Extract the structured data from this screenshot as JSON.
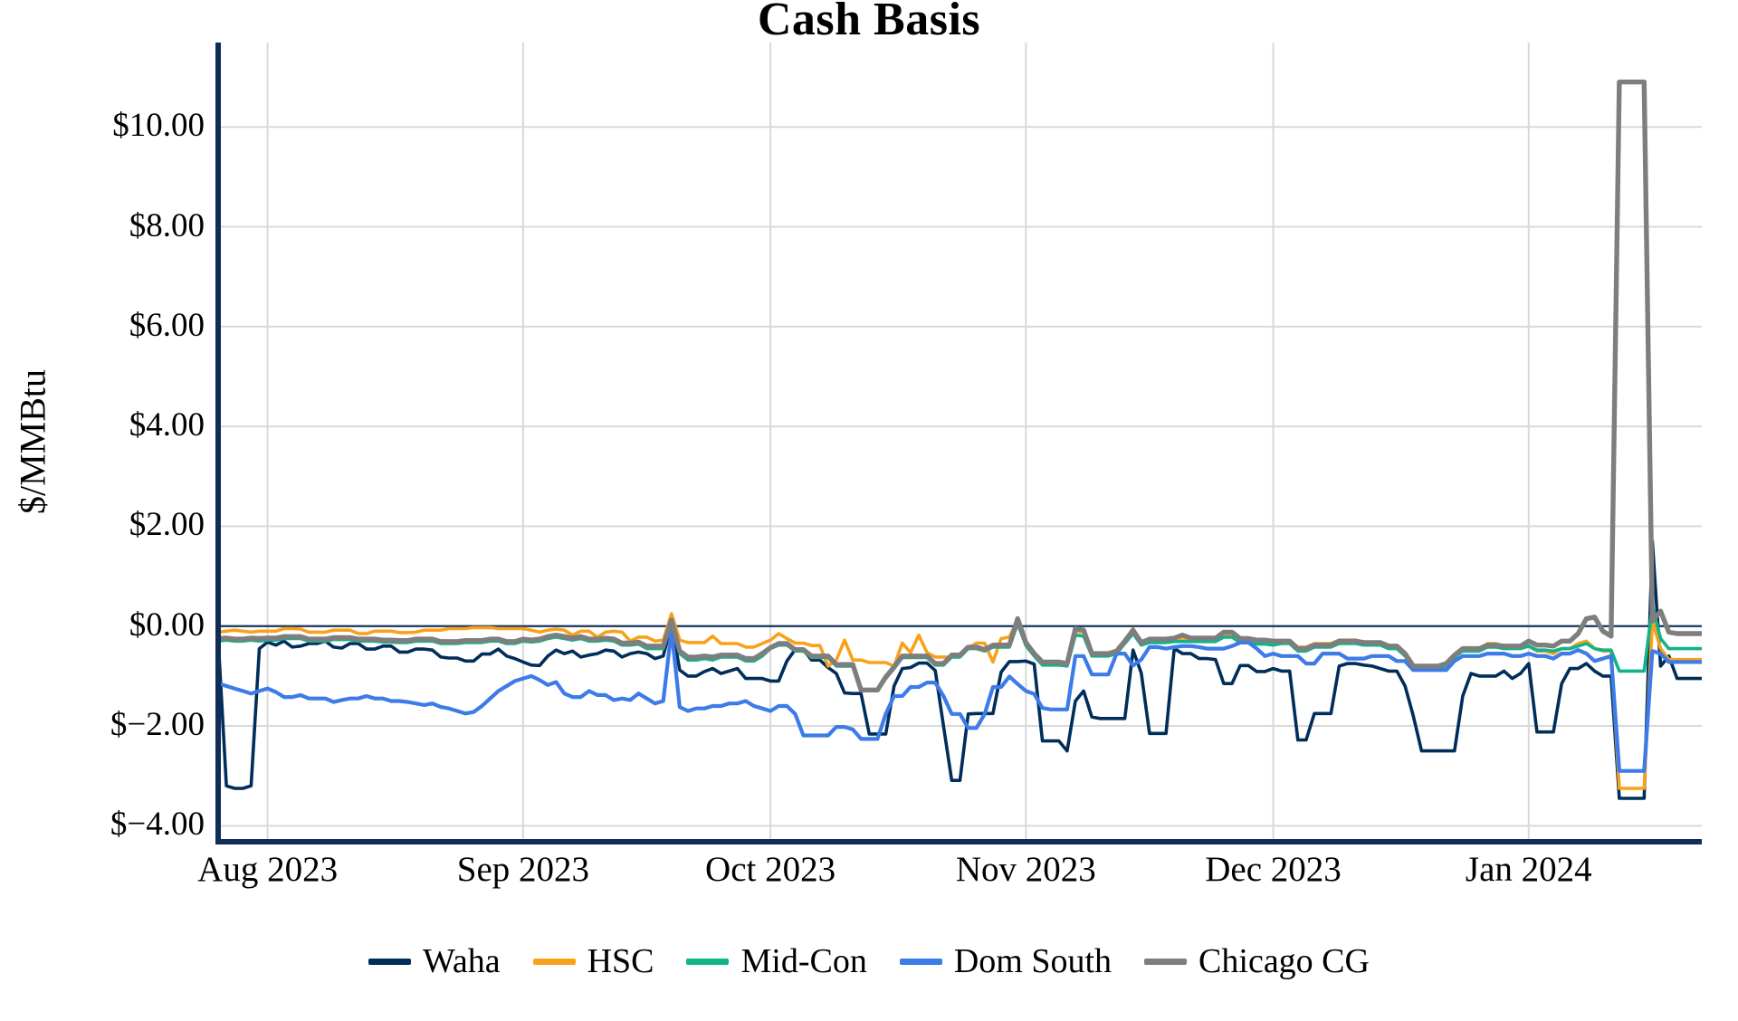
{
  "chart_data": {
    "type": "line",
    "title": "Cash Basis",
    "ylabel": "$/MMBtu",
    "ylim": [
      -4.32,
      11.69
    ],
    "grid": true,
    "grid_color": "#D9D9D9",
    "axis_color": "#0F2D56",
    "zero_line": {
      "value": 0,
      "color": "#16375E",
      "width": 2.2
    },
    "legend_position": "bottom",
    "yticks": [
      {
        "value": 10,
        "label": "$10.00"
      },
      {
        "value": 8,
        "label": "$8.00"
      },
      {
        "value": 6,
        "label": "$6.00"
      },
      {
        "value": 4,
        "label": "$4.00"
      },
      {
        "value": 2,
        "label": "$2.00"
      },
      {
        "value": 0,
        "label": "$0.00"
      },
      {
        "value": -2,
        "label": "$−2.00"
      },
      {
        "value": -4,
        "label": "$−4.00"
      }
    ],
    "x_axis_note": "daily points, late Jul 2023 through late Jan 2024",
    "n_points": 181,
    "xticks": [
      {
        "index": 6,
        "label": "Aug 2023"
      },
      {
        "index": 37,
        "label": "Sep 2023"
      },
      {
        "index": 67,
        "label": "Oct 2023"
      },
      {
        "index": 98,
        "label": "Nov 2023"
      },
      {
        "index": 128,
        "label": "Dec 2023"
      },
      {
        "index": 159,
        "label": "Jan 2024"
      }
    ],
    "series": [
      {
        "name": "Waha",
        "color": "#002D5A",
        "width": 3.6,
        "values": [
          -0.25,
          -3.2,
          -3.25,
          -3.25,
          -3.2,
          -0.45,
          -0.32,
          -0.38,
          -0.3,
          -0.42,
          -0.4,
          -0.35,
          -0.35,
          -0.3,
          -0.42,
          -0.44,
          -0.35,
          -0.35,
          -0.46,
          -0.46,
          -0.4,
          -0.4,
          -0.52,
          -0.52,
          -0.46,
          -0.46,
          -0.48,
          -0.62,
          -0.64,
          -0.64,
          -0.7,
          -0.7,
          -0.56,
          -0.56,
          -0.46,
          -0.6,
          -0.65,
          -0.72,
          -0.78,
          -0.79,
          -0.6,
          -0.48,
          -0.55,
          -0.5,
          -0.62,
          -0.58,
          -0.55,
          -0.48,
          -0.5,
          -0.62,
          -0.55,
          -0.52,
          -0.55,
          -0.65,
          -0.6,
          0.05,
          -0.88,
          -1.0,
          -1.0,
          -0.91,
          -0.85,
          -0.95,
          -0.9,
          -0.85,
          -1.05,
          -1.05,
          -1.05,
          -1.1,
          -1.1,
          -0.7,
          -0.47,
          -0.47,
          -0.68,
          -0.68,
          -0.83,
          -0.95,
          -1.34,
          -1.35,
          -1.35,
          -2.16,
          -2.16,
          -2.16,
          -1.2,
          -0.85,
          -0.83,
          -0.74,
          -0.74,
          -0.89,
          -2.0,
          -3.09,
          -3.09,
          -1.76,
          -1.75,
          -1.75,
          -1.75,
          -0.92,
          -0.71,
          -0.71,
          -0.7,
          -0.76,
          -2.3,
          -2.3,
          -2.3,
          -2.5,
          -1.5,
          -1.3,
          -1.82,
          -1.85,
          -1.85,
          -1.85,
          -1.85,
          -0.48,
          -0.94,
          -2.15,
          -2.15,
          -2.15,
          -0.45,
          -0.55,
          -0.55,
          -0.65,
          -0.65,
          -0.67,
          -1.15,
          -1.15,
          -0.79,
          -0.79,
          -0.91,
          -0.91,
          -0.85,
          -0.9,
          -0.9,
          -2.28,
          -2.28,
          -1.75,
          -1.75,
          -1.75,
          -0.8,
          -0.75,
          -0.75,
          -0.78,
          -0.8,
          -0.85,
          -0.9,
          -0.9,
          -1.2,
          -1.8,
          -2.5,
          -2.5,
          -2.5,
          -2.5,
          -2.5,
          -1.4,
          -0.95,
          -1.0,
          -1.0,
          -1.0,
          -0.9,
          -1.05,
          -0.95,
          -0.75,
          -2.12,
          -2.12,
          -2.12,
          -1.15,
          -0.85,
          -0.85,
          -0.75,
          -0.9,
          -1.0,
          -1.0,
          -3.45,
          -3.45,
          -3.45,
          -3.45,
          1.7,
          -0.8,
          -0.6,
          -1.05,
          -1.05,
          -1.05,
          -1.05
        ]
      },
      {
        "name": "HSC",
        "color": "#F9A11B",
        "width": 3.6,
        "values": [
          -0.12,
          -0.1,
          -0.08,
          -0.1,
          -0.12,
          -0.1,
          -0.1,
          -0.1,
          -0.05,
          -0.05,
          -0.06,
          -0.12,
          -0.12,
          -0.12,
          -0.08,
          -0.08,
          -0.08,
          -0.15,
          -0.15,
          -0.1,
          -0.1,
          -0.1,
          -0.13,
          -0.13,
          -0.12,
          -0.08,
          -0.08,
          -0.08,
          -0.05,
          -0.05,
          -0.05,
          -0.03,
          -0.03,
          -0.03,
          -0.05,
          -0.05,
          -0.05,
          -0.05,
          -0.08,
          -0.12,
          -0.08,
          -0.06,
          -0.08,
          -0.18,
          -0.1,
          -0.1,
          -0.22,
          -0.12,
          -0.1,
          -0.12,
          -0.3,
          -0.22,
          -0.22,
          -0.3,
          -0.28,
          0.25,
          -0.28,
          -0.33,
          -0.33,
          -0.33,
          -0.2,
          -0.35,
          -0.35,
          -0.35,
          -0.42,
          -0.42,
          -0.35,
          -0.28,
          -0.15,
          -0.25,
          -0.34,
          -0.34,
          -0.39,
          -0.39,
          -0.8,
          -0.68,
          -0.28,
          -0.68,
          -0.68,
          -0.73,
          -0.73,
          -0.73,
          -0.8,
          -0.34,
          -0.53,
          -0.18,
          -0.53,
          -0.62,
          -0.62,
          -0.62,
          -0.6,
          -0.44,
          -0.34,
          -0.34,
          -0.72,
          -0.25,
          -0.22,
          0.12,
          -0.33,
          -0.55,
          -0.72,
          -0.72,
          -0.72,
          -0.75,
          -0.1,
          -0.12,
          -0.55,
          -0.55,
          -0.55,
          -0.5,
          -0.3,
          -0.05,
          -0.35,
          -0.3,
          -0.3,
          -0.3,
          -0.28,
          -0.28,
          -0.28,
          -0.28,
          -0.28,
          -0.28,
          -0.18,
          -0.18,
          -0.25,
          -0.25,
          -0.28,
          -0.28,
          -0.3,
          -0.3,
          -0.3,
          -0.42,
          -0.42,
          -0.35,
          -0.35,
          -0.35,
          -0.28,
          -0.28,
          -0.28,
          -0.32,
          -0.32,
          -0.32,
          -0.4,
          -0.4,
          -0.55,
          -0.85,
          -0.85,
          -0.85,
          -0.85,
          -0.8,
          -0.6,
          -0.45,
          -0.45,
          -0.45,
          -0.35,
          -0.35,
          -0.4,
          -0.4,
          -0.4,
          -0.4,
          -0.5,
          -0.5,
          -0.55,
          -0.45,
          -0.45,
          -0.35,
          -0.3,
          -0.45,
          -0.5,
          -0.5,
          -3.25,
          -3.25,
          -3.25,
          -3.25,
          0.1,
          -0.45,
          -0.67,
          -0.67,
          -0.67,
          -0.67,
          -0.67
        ]
      },
      {
        "name": "Mid-Con",
        "color": "#12B388",
        "width": 3.6,
        "values": [
          -0.3,
          -0.28,
          -0.3,
          -0.3,
          -0.28,
          -0.3,
          -0.28,
          -0.28,
          -0.25,
          -0.25,
          -0.25,
          -0.3,
          -0.3,
          -0.3,
          -0.27,
          -0.27,
          -0.27,
          -0.3,
          -0.3,
          -0.3,
          -0.32,
          -0.32,
          -0.33,
          -0.33,
          -0.3,
          -0.3,
          -0.3,
          -0.35,
          -0.35,
          -0.35,
          -0.33,
          -0.33,
          -0.33,
          -0.3,
          -0.3,
          -0.35,
          -0.35,
          -0.3,
          -0.32,
          -0.3,
          -0.25,
          -0.22,
          -0.25,
          -0.28,
          -0.25,
          -0.3,
          -0.3,
          -0.28,
          -0.3,
          -0.38,
          -0.38,
          -0.36,
          -0.45,
          -0.45,
          -0.45,
          0.08,
          -0.55,
          -0.68,
          -0.68,
          -0.65,
          -0.68,
          -0.62,
          -0.62,
          -0.62,
          -0.7,
          -0.7,
          -0.6,
          -0.45,
          -0.38,
          -0.38,
          -0.5,
          -0.5,
          -0.63,
          -0.63,
          -0.63,
          -0.8,
          -0.8,
          -0.8,
          -1.28,
          -1.28,
          -1.28,
          -1.05,
          -0.85,
          -0.63,
          -0.63,
          -0.63,
          -0.63,
          -0.78,
          -0.78,
          -0.62,
          -0.62,
          -0.45,
          -0.45,
          -0.5,
          -0.42,
          -0.42,
          -0.42,
          0.05,
          -0.39,
          -0.6,
          -0.78,
          -0.78,
          -0.78,
          -0.8,
          -0.18,
          -0.2,
          -0.6,
          -0.6,
          -0.6,
          -0.55,
          -0.35,
          -0.15,
          -0.38,
          -0.33,
          -0.33,
          -0.33,
          -0.31,
          -0.31,
          -0.31,
          -0.31,
          -0.31,
          -0.31,
          -0.22,
          -0.22,
          -0.33,
          -0.33,
          -0.36,
          -0.36,
          -0.38,
          -0.35,
          -0.35,
          -0.5,
          -0.5,
          -0.42,
          -0.42,
          -0.42,
          -0.35,
          -0.35,
          -0.35,
          -0.38,
          -0.38,
          -0.38,
          -0.45,
          -0.45,
          -0.6,
          -0.85,
          -0.85,
          -0.85,
          -0.85,
          -0.8,
          -0.62,
          -0.5,
          -0.5,
          -0.5,
          -0.42,
          -0.42,
          -0.45,
          -0.45,
          -0.45,
          -0.4,
          -0.48,
          -0.48,
          -0.5,
          -0.45,
          -0.45,
          -0.4,
          -0.35,
          -0.45,
          -0.48,
          -0.48,
          -0.9,
          -0.9,
          -0.9,
          -0.9,
          0.4,
          -0.25,
          -0.45,
          -0.45,
          -0.45,
          -0.45,
          -0.45
        ]
      },
      {
        "name": "Dom South",
        "color": "#3C7BE8",
        "width": 4.2,
        "values": [
          -1.15,
          -1.2,
          -1.25,
          -1.3,
          -1.35,
          -1.3,
          -1.25,
          -1.32,
          -1.42,
          -1.42,
          -1.38,
          -1.45,
          -1.45,
          -1.45,
          -1.52,
          -1.48,
          -1.45,
          -1.45,
          -1.4,
          -1.45,
          -1.45,
          -1.5,
          -1.5,
          -1.52,
          -1.55,
          -1.58,
          -1.55,
          -1.62,
          -1.65,
          -1.7,
          -1.75,
          -1.72,
          -1.6,
          -1.45,
          -1.3,
          -1.2,
          -1.1,
          -1.05,
          -1.0,
          -1.08,
          -1.18,
          -1.12,
          -1.35,
          -1.42,
          -1.42,
          -1.3,
          -1.38,
          -1.38,
          -1.48,
          -1.45,
          -1.48,
          -1.35,
          -1.45,
          -1.55,
          -1.5,
          -0.08,
          -1.62,
          -1.7,
          -1.65,
          -1.65,
          -1.6,
          -1.6,
          -1.55,
          -1.55,
          -1.5,
          -1.6,
          -1.65,
          -1.7,
          -1.6,
          -1.6,
          -1.76,
          -2.19,
          -2.19,
          -2.19,
          -2.19,
          -2.02,
          -2.02,
          -2.07,
          -2.26,
          -2.26,
          -2.26,
          -1.76,
          -1.4,
          -1.4,
          -1.22,
          -1.22,
          -1.13,
          -1.13,
          -1.4,
          -1.76,
          -1.76,
          -2.04,
          -2.04,
          -1.76,
          -1.22,
          -1.22,
          -1.01,
          -1.16,
          -1.3,
          -1.36,
          -1.64,
          -1.67,
          -1.67,
          -1.67,
          -0.6,
          -0.6,
          -0.97,
          -0.97,
          -0.97,
          -0.55,
          -0.55,
          -0.79,
          -0.67,
          -0.42,
          -0.42,
          -0.45,
          -0.42,
          -0.4,
          -0.4,
          -0.42,
          -0.45,
          -0.45,
          -0.45,
          -0.4,
          -0.33,
          -0.33,
          -0.45,
          -0.6,
          -0.55,
          -0.6,
          -0.6,
          -0.6,
          -0.75,
          -0.75,
          -0.55,
          -0.55,
          -0.55,
          -0.65,
          -0.65,
          -0.65,
          -0.6,
          -0.6,
          -0.6,
          -0.7,
          -0.7,
          -0.88,
          -0.88,
          -0.88,
          -0.88,
          -0.88,
          -0.7,
          -0.6,
          -0.6,
          -0.6,
          -0.55,
          -0.55,
          -0.55,
          -0.6,
          -0.6,
          -0.55,
          -0.6,
          -0.6,
          -0.65,
          -0.55,
          -0.55,
          -0.48,
          -0.55,
          -0.7,
          -0.65,
          -0.6,
          -2.9,
          -2.9,
          -2.9,
          -2.9,
          -0.5,
          -0.55,
          -0.72,
          -0.72,
          -0.72,
          -0.72,
          -0.72
        ]
      },
      {
        "name": "Chicago CG",
        "color": "#7E7E7E",
        "width": 5.4,
        "values": [
          -0.25,
          -0.24,
          -0.26,
          -0.26,
          -0.24,
          -0.25,
          -0.24,
          -0.24,
          -0.21,
          -0.21,
          -0.21,
          -0.26,
          -0.26,
          -0.26,
          -0.23,
          -0.23,
          -0.23,
          -0.26,
          -0.26,
          -0.26,
          -0.28,
          -0.28,
          -0.29,
          -0.29,
          -0.26,
          -0.26,
          -0.26,
          -0.31,
          -0.31,
          -0.31,
          -0.29,
          -0.29,
          -0.29,
          -0.26,
          -0.26,
          -0.31,
          -0.31,
          -0.26,
          -0.28,
          -0.26,
          -0.21,
          -0.18,
          -0.21,
          -0.24,
          -0.21,
          -0.26,
          -0.26,
          -0.24,
          -0.26,
          -0.34,
          -0.34,
          -0.32,
          -0.4,
          -0.4,
          -0.4,
          0.12,
          -0.5,
          -0.62,
          -0.62,
          -0.6,
          -0.62,
          -0.58,
          -0.58,
          -0.58,
          -0.65,
          -0.65,
          -0.55,
          -0.43,
          -0.35,
          -0.35,
          -0.47,
          -0.47,
          -0.6,
          -0.6,
          -0.6,
          -0.77,
          -0.77,
          -0.77,
          -1.28,
          -1.28,
          -1.28,
          -1.02,
          -0.82,
          -0.6,
          -0.6,
          -0.6,
          -0.6,
          -0.75,
          -0.75,
          -0.58,
          -0.58,
          -0.42,
          -0.42,
          -0.47,
          -0.38,
          -0.38,
          -0.38,
          0.15,
          -0.33,
          -0.55,
          -0.72,
          -0.72,
          -0.72,
          -0.75,
          -0.05,
          -0.08,
          -0.55,
          -0.55,
          -0.55,
          -0.5,
          -0.3,
          -0.08,
          -0.33,
          -0.26,
          -0.26,
          -0.26,
          -0.24,
          -0.18,
          -0.24,
          -0.24,
          -0.24,
          -0.24,
          -0.12,
          -0.12,
          -0.25,
          -0.25,
          -0.28,
          -0.28,
          -0.3,
          -0.3,
          -0.3,
          -0.45,
          -0.45,
          -0.38,
          -0.38,
          -0.38,
          -0.3,
          -0.3,
          -0.3,
          -0.33,
          -0.33,
          -0.33,
          -0.4,
          -0.4,
          -0.55,
          -0.8,
          -0.8,
          -0.8,
          -0.8,
          -0.75,
          -0.58,
          -0.45,
          -0.45,
          -0.45,
          -0.38,
          -0.38,
          -0.4,
          -0.4,
          -0.4,
          -0.3,
          -0.38,
          -0.38,
          -0.4,
          -0.3,
          -0.3,
          -0.15,
          0.15,
          0.18,
          -0.1,
          -0.2,
          10.9,
          10.9,
          10.9,
          10.9,
          0.1,
          0.3,
          -0.12,
          -0.15,
          -0.15,
          -0.15,
          -0.15
        ]
      }
    ]
  }
}
